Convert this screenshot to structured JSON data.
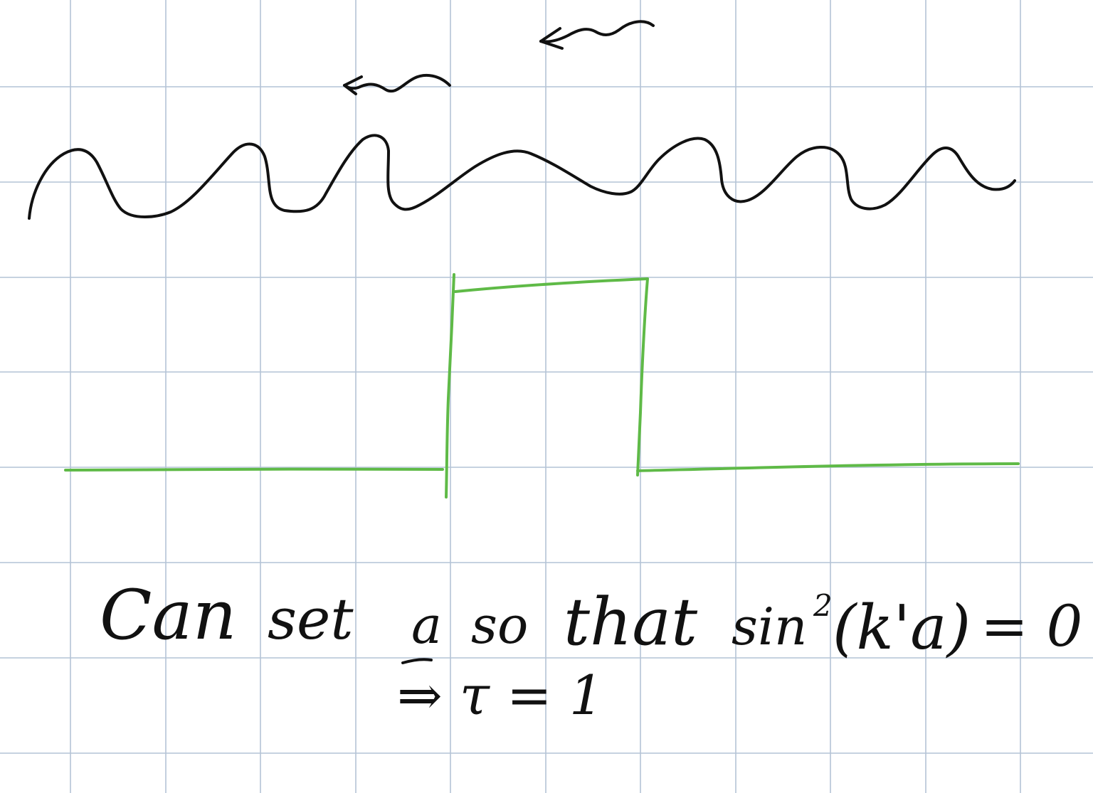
{
  "note": {
    "paper": {
      "background_color": "#ffffff",
      "grid_color": "#b4c3d6"
    },
    "ink": {
      "wave_color": "#111111",
      "barrier_color": "#5fba47",
      "text_color": "#111111"
    },
    "sketch": {
      "wave_label": "",
      "barrier_label": ""
    },
    "handwriting": {
      "line1_can": "Can",
      "line1_set": "set",
      "line1_a": "a",
      "line1_so": "so",
      "line1_that": "that",
      "line1_sin": "sin",
      "line1_exp": "2",
      "line1_arg": "(k'a)",
      "line1_eq": "= 0",
      "line2": "⇒ τ = 1"
    }
  }
}
